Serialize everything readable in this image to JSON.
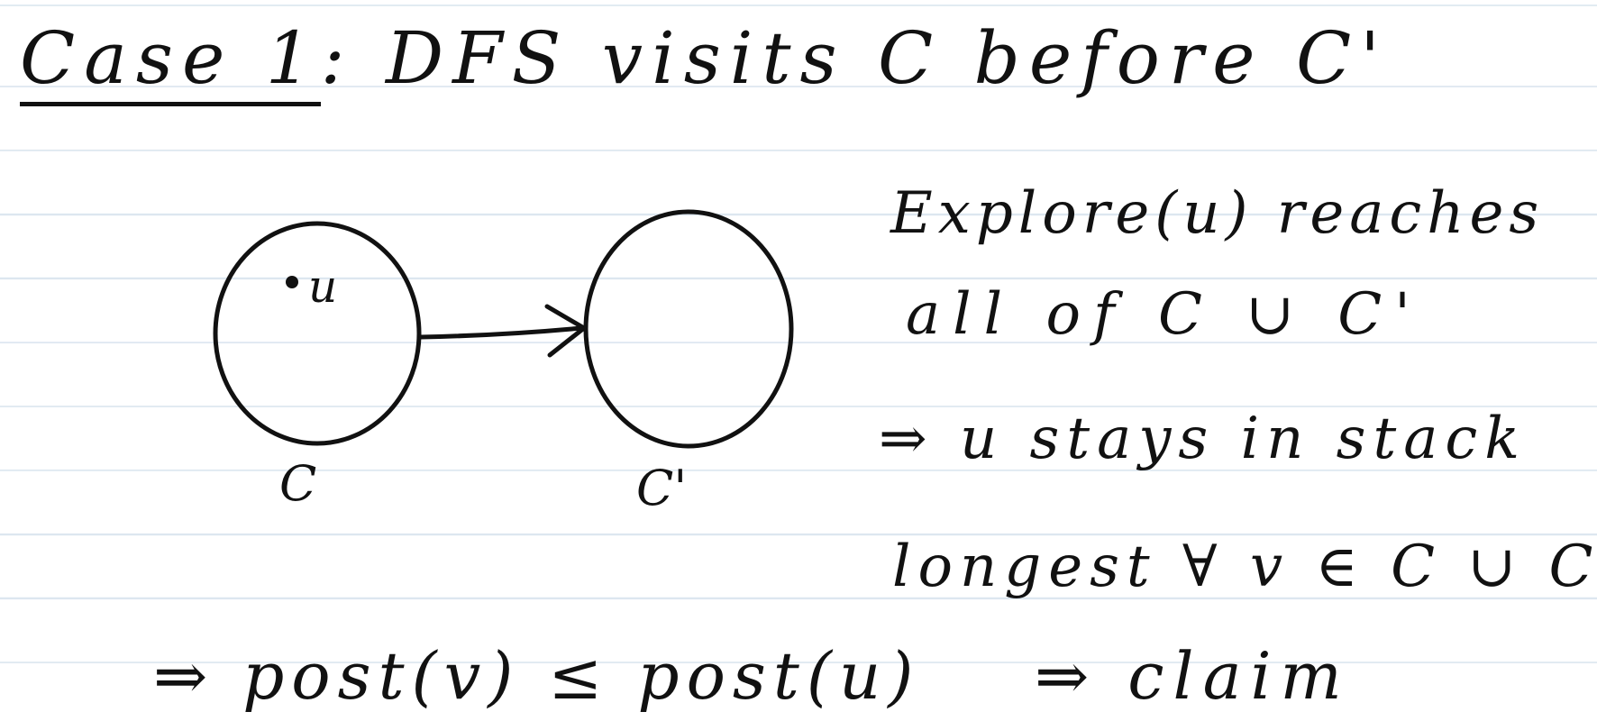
{
  "title": {
    "case": "Case 1",
    "rest": ": DFS visits C before C'"
  },
  "diagram": {
    "node_left_label": "C",
    "node_right_label": "C'",
    "vertex_label": "u"
  },
  "notes": {
    "line1": "Explore(u) reaches",
    "line2": "all of C ∪ C'",
    "line3": "⇒ u stays in stack",
    "line4": "longest ∀ v ∈ C ∪ C'",
    "line5": "⇒ post(v) ≤ post(u)",
    "line6": "⇒ claim"
  }
}
